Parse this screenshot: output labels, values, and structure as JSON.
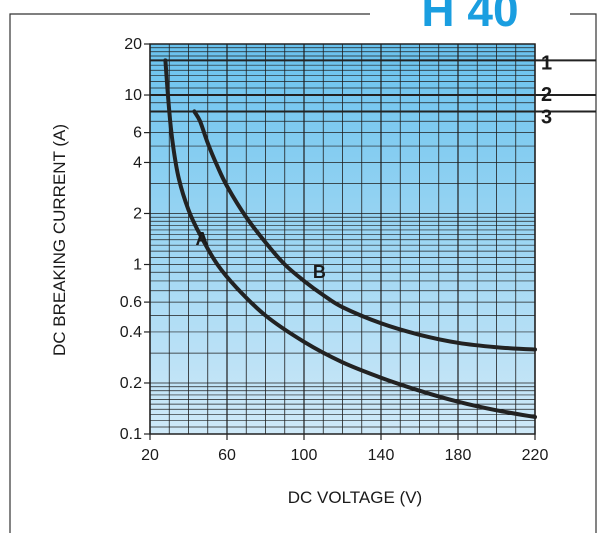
{
  "badge": {
    "label": "H 40",
    "color": "#1a9ee0"
  },
  "chart_data": {
    "type": "line",
    "title": "",
    "xlabel": "DC VOLTAGE (V)",
    "ylabel": "DC BREAKING CURRENT (A)",
    "x_scale": "linear",
    "y_scale": "log",
    "xlim": [
      20,
      220
    ],
    "ylim": [
      0.1,
      20
    ],
    "x_ticks": [
      "20",
      "60",
      "100",
      "140",
      "180",
      "220"
    ],
    "x_tick_values": [
      20,
      60,
      100,
      140,
      180,
      220
    ],
    "y_ticks": [
      "0.1",
      "0.2",
      "0.4",
      "0.6",
      "1",
      "2",
      "4",
      "6",
      "10",
      "20"
    ],
    "y_tick_values": [
      0.1,
      0.2,
      0.4,
      0.6,
      1,
      2,
      4,
      6,
      10,
      20
    ],
    "grid": true,
    "background_gradient": [
      "#cfe9f8",
      "#69c2ee"
    ],
    "series": [
      {
        "name": "A",
        "color": "#222222",
        "label_at": [
          47,
          1.3
        ],
        "points": [
          [
            28,
            16
          ],
          [
            30,
            8
          ],
          [
            32,
            5
          ],
          [
            35,
            3.2
          ],
          [
            40,
            2.1
          ],
          [
            46,
            1.5
          ],
          [
            55,
            1.0
          ],
          [
            65,
            0.73
          ],
          [
            80,
            0.5
          ],
          [
            100,
            0.35
          ],
          [
            120,
            0.265
          ],
          [
            140,
            0.215
          ],
          [
            160,
            0.18
          ],
          [
            180,
            0.155
          ],
          [
            200,
            0.138
          ],
          [
            220,
            0.126
          ]
        ]
      },
      {
        "name": "B",
        "color": "#222222",
        "label_at": [
          108,
          0.83
        ],
        "points": [
          [
            43,
            8
          ],
          [
            46,
            7
          ],
          [
            50,
            5.2
          ],
          [
            55,
            3.8
          ],
          [
            60,
            2.9
          ],
          [
            70,
            1.9
          ],
          [
            80,
            1.35
          ],
          [
            90,
            1.0
          ],
          [
            100,
            0.8
          ],
          [
            110,
            0.66
          ],
          [
            120,
            0.56
          ],
          [
            140,
            0.45
          ],
          [
            160,
            0.385
          ],
          [
            180,
            0.345
          ],
          [
            200,
            0.325
          ],
          [
            220,
            0.315
          ]
        ]
      }
    ],
    "reference_lines": [
      {
        "label": "1",
        "value": 16,
        "color": "#222222"
      },
      {
        "label": "2",
        "value": 10,
        "color": "#222222"
      },
      {
        "label": "3",
        "value": 8,
        "color": "#222222"
      }
    ]
  }
}
